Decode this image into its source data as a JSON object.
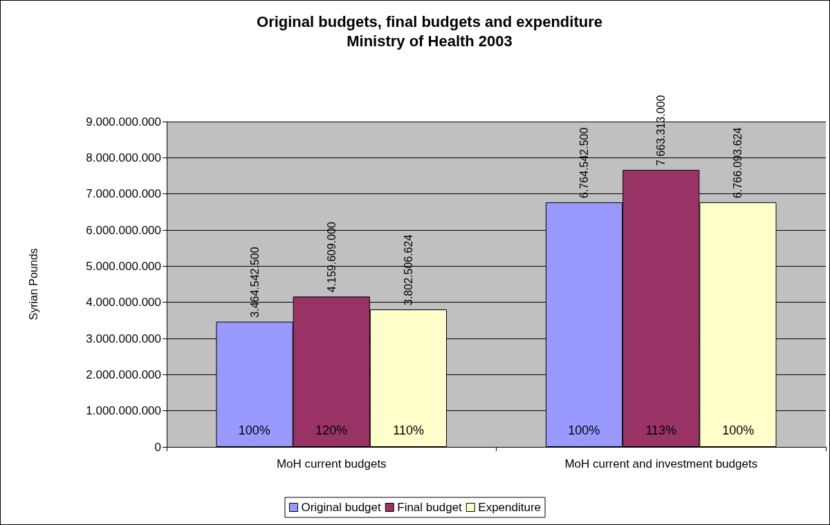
{
  "chart_data": {
    "type": "bar",
    "title": "Original budgets, final budgets and expenditure",
    "subtitle": "Ministry of Health 2003",
    "ylabel": "Syrian Pounds",
    "categories": [
      "MoH current budgets",
      "MoH current and investment budgets"
    ],
    "series": [
      {
        "name": "Original budget",
        "color": "#9999ff",
        "values": [
          3464542500,
          6764542500
        ],
        "value_labels": [
          "3.464.542.500",
          "6.764.542.500"
        ]
      },
      {
        "name": "Final budget",
        "color": "#993366",
        "values": [
          4159609000,
          7663313000
        ],
        "value_labels": [
          "4.159.609.000",
          "7.663.313.000"
        ]
      },
      {
        "name": "Expenditure",
        "color": "#ffffcc",
        "values": [
          3802506624,
          6766093624
        ],
        "value_labels": [
          "3.802.506.624",
          "6.766.093.624"
        ]
      }
    ],
    "annotations": [
      "100%",
      "120%",
      "110%",
      "100%",
      "113%",
      "100%"
    ],
    "ylim": [
      0,
      9000000000
    ],
    "yticks": [
      0,
      {
        "value": 1000000000,
        "label": "1.000.000.000"
      },
      {
        "value": 2000000000,
        "label": "2.000.000.000"
      },
      {
        "value": 3000000000,
        "label": "3.000.000.000"
      },
      {
        "value": 4000000000,
        "label": "4.000.000.000"
      },
      {
        "value": 5000000000,
        "label": "5.000.000.000"
      },
      {
        "value": 6000000000,
        "label": "6.000.000.000"
      },
      {
        "value": 7000000000,
        "label": "7.000.000.000"
      },
      {
        "value": 8000000000,
        "label": "8.000.000.000"
      },
      {
        "value": 9000000000,
        "label": "9.000.000.000"
      }
    ],
    "grid": "y",
    "legend": "bottom"
  }
}
